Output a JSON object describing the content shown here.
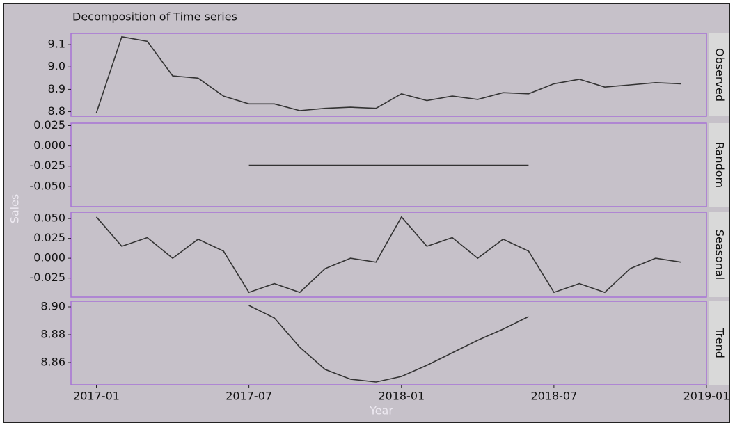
{
  "chart_data": {
    "type": "line",
    "title": "Decomposition of Time series",
    "xlabel": "Year",
    "ylabel": "Sales",
    "x": [
      "2017-01",
      "2017-02",
      "2017-03",
      "2017-04",
      "2017-05",
      "2017-06",
      "2017-07",
      "2017-08",
      "2017-09",
      "2017-10",
      "2017-11",
      "2017-12",
      "2018-01",
      "2018-02",
      "2018-03",
      "2018-04",
      "2018-05",
      "2018-06",
      "2018-07",
      "2018-08",
      "2018-09",
      "2018-10",
      "2018-11",
      "2018-12"
    ],
    "xlim": [
      "2016-12",
      "2019-01"
    ],
    "xticks": [
      "2017-01",
      "2017-07",
      "2018-01",
      "2018-07",
      "2019-01"
    ],
    "color": "#333333",
    "panel_border": "#a772d6",
    "panels": [
      {
        "name": "Observed",
        "ylim": [
          8.78,
          9.15
        ],
        "yticks": [
          8.8,
          8.9,
          {
            "value": 9,
            "label": "9.0"
          },
          9.1
        ],
        "values": [
          8.795,
          9.135,
          9.115,
          8.96,
          8.95,
          8.87,
          8.835,
          8.835,
          8.805,
          8.815,
          8.82,
          8.815,
          8.88,
          8.85,
          8.87,
          8.855,
          8.885,
          8.88,
          8.925,
          8.945,
          8.91,
          8.92,
          8.93,
          8.925
        ]
      },
      {
        "name": "Random",
        "ylim": [
          -0.075,
          0.028
        ],
        "yticks": [
          {
            "value": -0.05,
            "label": "-0.050"
          },
          -0.025,
          {
            "value": 0,
            "label": "0.000"
          },
          0.025
        ],
        "values": [
          null,
          null,
          null,
          null,
          null,
          null,
          -0.024,
          -0.024,
          -0.024,
          -0.024,
          -0.024,
          -0.024,
          -0.024,
          -0.024,
          -0.024,
          -0.024,
          -0.024,
          -0.024,
          null,
          null,
          null,
          null,
          null,
          null
        ]
      },
      {
        "name": "Seasonal",
        "ylim": [
          -0.049,
          0.058
        ],
        "yticks": [
          -0.025,
          {
            "value": 0,
            "label": "0.000"
          },
          0.025,
          {
            "value": 0.05,
            "label": "0.050"
          }
        ],
        "values": [
          0.052,
          0.015,
          0.026,
          0,
          0.024,
          0.009,
          -0.043,
          -0.032,
          -0.043,
          -0.013,
          0,
          -0.005,
          0.052,
          0.015,
          0.026,
          0,
          0.024,
          0.009,
          -0.043,
          -0.032,
          -0.043,
          -0.013,
          0,
          -0.005
        ]
      },
      {
        "name": "Trend",
        "ylim": [
          8.844,
          8.904
        ],
        "yticks": [
          8.86,
          8.88,
          {
            "value": 8.9,
            "label": "8.90"
          }
        ],
        "values": [
          null,
          null,
          null,
          null,
          null,
          null,
          8.901,
          8.892,
          8.871,
          8.855,
          8.848,
          8.846,
          8.85,
          8.858,
          8.867,
          8.876,
          8.884,
          8.893,
          null,
          null,
          null,
          null,
          null,
          null
        ]
      }
    ]
  }
}
